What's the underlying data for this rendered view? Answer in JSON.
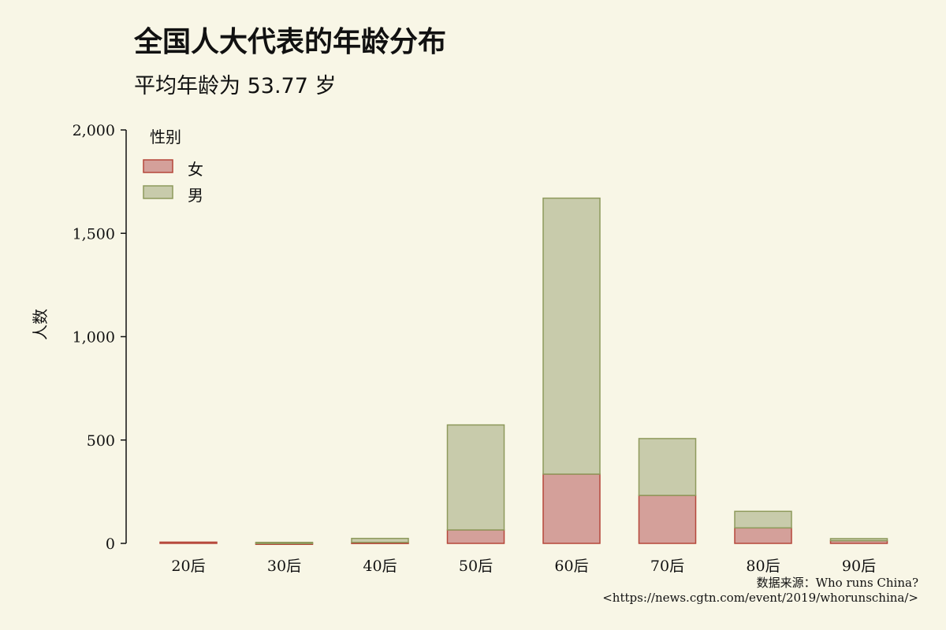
{
  "chart_data": {
    "type": "bar",
    "stacked": true,
    "title": "全国人大代表的年龄分布",
    "subtitle": "平均年龄为 53.77 岁",
    "ylabel": "人数",
    "xlabel": "",
    "categories": [
      "20后",
      "30后",
      "40后",
      "50后",
      "60后",
      "70后",
      "80后",
      "90后"
    ],
    "series": [
      {
        "name": "女",
        "values": [
          6,
          1,
          5,
          65,
          335,
          232,
          75,
          13
        ],
        "fill": "#d4a09a",
        "stroke": "#b5473a"
      },
      {
        "name": "男",
        "values": [
          0,
          4,
          19,
          508,
          1335,
          275,
          80,
          10
        ],
        "fill": "#c8cbab",
        "stroke": "#8e9a5c"
      }
    ],
    "ylim": [
      0,
      2000
    ],
    "yticks": [
      0,
      500,
      1000,
      1500,
      2000
    ],
    "ytick_labels": [
      "0",
      "500",
      "1,000",
      "1,500",
      "2,000"
    ],
    "legend": {
      "title": "性别",
      "placement": "top-left"
    },
    "grid": false,
    "caption_line1": "数据来源：Who runs China?",
    "caption_line2": "<https://news.cgtn.com/event/2019/whorunschina/>"
  }
}
